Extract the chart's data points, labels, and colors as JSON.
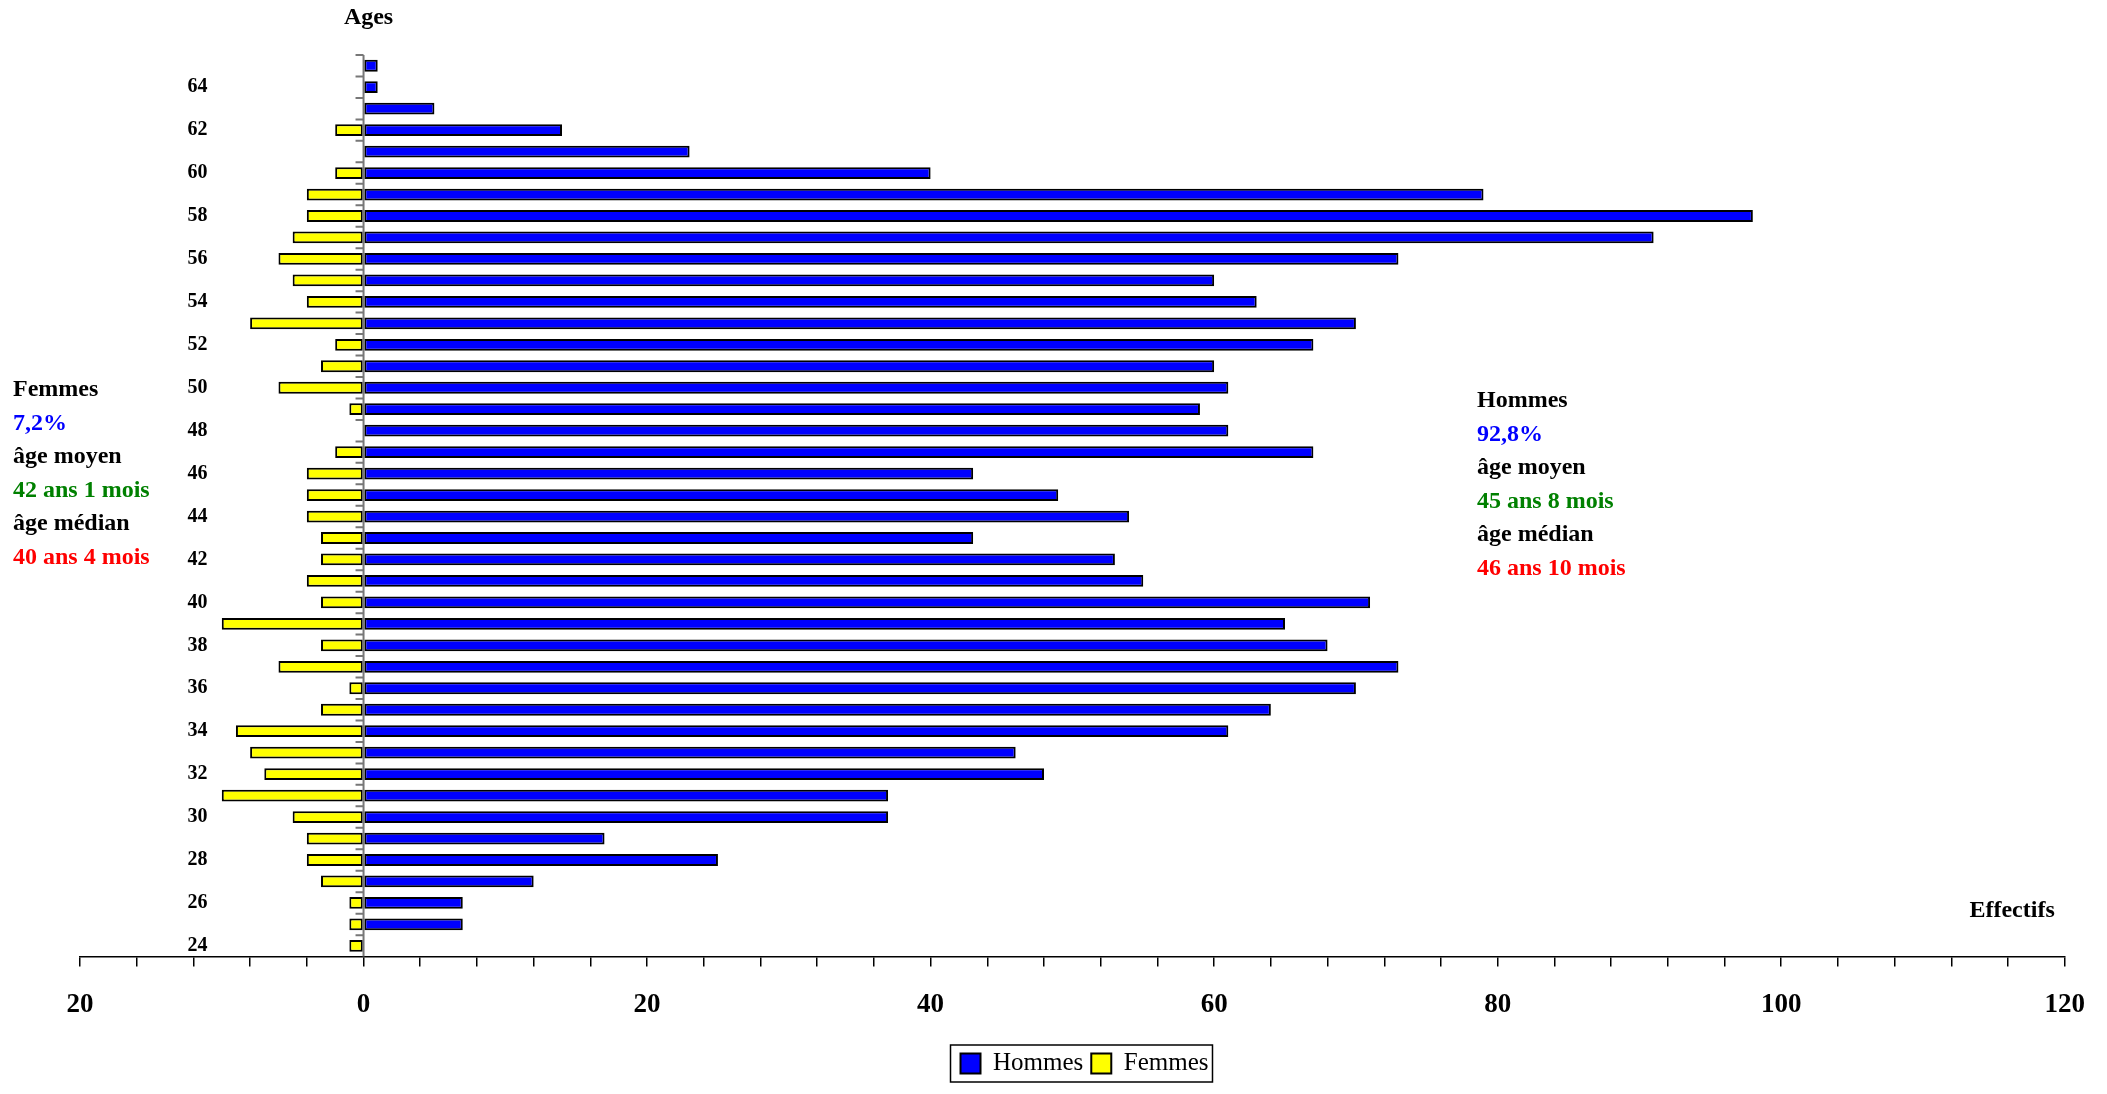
{
  "chart_data": {
    "type": "bar",
    "orientation": "horizontal",
    "stacked": true,
    "xlabel": "Effectifs",
    "ylabel": "Ages",
    "categories": [
      null,
      "64",
      null,
      "62",
      null,
      "60",
      null,
      "58",
      null,
      "56",
      null,
      "54",
      null,
      "52",
      null,
      "50",
      null,
      "48",
      null,
      "46",
      null,
      "44",
      null,
      "42",
      null,
      "40",
      null,
      "38",
      null,
      "36",
      null,
      "34",
      null,
      "32",
      null,
      "30",
      null,
      "28",
      null,
      "26",
      null,
      "24"
    ],
    "series": [
      {
        "name": "Hommes",
        "color": "#0000ff",
        "values": [
          1,
          1,
          5,
          14,
          23,
          40,
          79,
          98,
          91,
          73,
          60,
          63,
          70,
          67,
          60,
          61,
          59,
          61,
          67,
          43,
          49,
          54,
          43,
          53,
          55,
          71,
          65,
          68,
          73,
          70,
          64,
          61,
          46,
          48,
          37,
          37,
          17,
          25,
          12,
          7,
          7,
          0
        ]
      },
      {
        "name": "Femmes",
        "color": "#ffff00",
        "values": [
          0,
          0,
          0,
          -2,
          0,
          -2,
          -4,
          -4,
          -5,
          -6,
          -5,
          -4,
          -8,
          -2,
          -3,
          -6,
          -1,
          0,
          -2,
          -4,
          -4,
          -4,
          -3,
          -3,
          -4,
          -3,
          -10,
          -3,
          -6,
          -1,
          -3,
          -9,
          -8,
          -7,
          -10,
          -5,
          -4,
          -4,
          -3,
          -1,
          -1,
          -1
        ]
      }
    ],
    "xlim": [
      -20,
      120
    ],
    "xticks": [
      {
        "value": -20,
        "label": "20"
      },
      {
        "value": -16,
        "label": null
      },
      {
        "value": -12,
        "label": null
      },
      {
        "value": -8,
        "label": null
      },
      {
        "value": -4,
        "label": null
      },
      0,
      {
        "value": 4,
        "label": null
      },
      {
        "value": 8,
        "label": null
      },
      {
        "value": 12,
        "label": null
      },
      {
        "value": 16,
        "label": null
      },
      20,
      {
        "value": 24,
        "label": null
      },
      {
        "value": 28,
        "label": null
      },
      {
        "value": 32,
        "label": null
      },
      {
        "value": 36,
        "label": null
      },
      40,
      {
        "value": 44,
        "label": null
      },
      {
        "value": 48,
        "label": null
      },
      {
        "value": 52,
        "label": null
      },
      {
        "value": 56,
        "label": null
      },
      60,
      {
        "value": 64,
        "label": null
      },
      {
        "value": 68,
        "label": null
      },
      {
        "value": 72,
        "label": null
      },
      {
        "value": 76,
        "label": null
      },
      80,
      {
        "value": 84,
        "label": null
      },
      {
        "value": 88,
        "label": null
      },
      {
        "value": 92,
        "label": null
      },
      {
        "value": 96,
        "label": null
      },
      100,
      {
        "value": 104,
        "label": null
      },
      {
        "value": 108,
        "label": null
      },
      {
        "value": 112,
        "label": null
      },
      {
        "value": 116,
        "label": null
      },
      120
    ],
    "legend": "bottom",
    "annotations": [
      "Femmes",
      "7,2%",
      "âge moyen",
      "42 ans 1 mois",
      "âge médian",
      "40 ans 4 mois",
      "Hommes",
      "92,8%",
      "âge moyen",
      "45 ans 8 mois",
      "âge médian",
      "46 ans 10 mois"
    ]
  }
}
